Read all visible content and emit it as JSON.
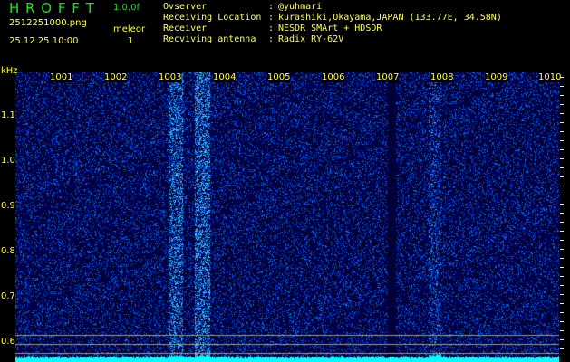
{
  "app": {
    "title": "H R O F F T",
    "version": "1.0.0f"
  },
  "file": {
    "name": "2512251000.png",
    "datetime": "25.12.25 10:00"
  },
  "meteor": {
    "label": "meleor",
    "count": "1"
  },
  "info": [
    {
      "label": "Ovserver",
      "value": "@yuhmari"
    },
    {
      "label": "Receiving Location",
      "value": "kurashiki,Okayama,JAPAN (133.77E, 34.58N)"
    },
    {
      "label": "Receiver",
      "value": "NESDR SMArt + HDSDR"
    },
    {
      "label": "Recviving antenna",
      "value": "Radix RY-62V"
    }
  ],
  "spectrogram": {
    "y_unit": "kHz",
    "y_ticks": [
      "1.1",
      "1.0",
      "0.9",
      "0.8",
      "0.7",
      "0.6"
    ],
    "x_ticks": [
      "1001",
      "1002",
      "1003",
      "1004",
      "1005",
      "1006",
      "1007",
      "1008",
      "1009",
      "1010"
    ],
    "colors": {
      "background": "#000010",
      "signal": "#2233ff",
      "floor": "#00ffff",
      "axis": "#ffff33"
    }
  }
}
